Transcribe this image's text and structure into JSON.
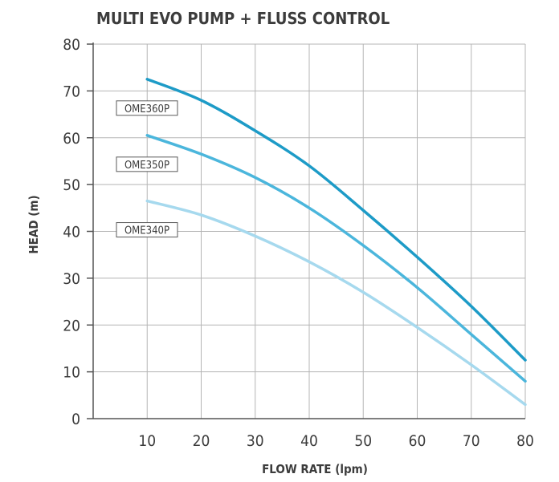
{
  "chart_data": {
    "type": "line",
    "title": "MULTI EVO PUMP + FLUSS CONTROL",
    "xlabel": "FLOW RATE (lpm)",
    "ylabel": "HEAD (m)",
    "xlim": [
      0,
      80
    ],
    "ylim": [
      0,
      80
    ],
    "x_ticks": [
      "10",
      "20",
      "30",
      "40",
      "50",
      "60",
      "70",
      "80"
    ],
    "y_ticks": [
      "0",
      "10",
      "20",
      "30",
      "40",
      "50",
      "60",
      "70",
      "80"
    ],
    "grid": true,
    "series": [
      {
        "name": "OME360P",
        "color": "#1d9bc7",
        "x": [
          10,
          20,
          30,
          40,
          50,
          60,
          70,
          80
        ],
        "y": [
          72.5,
          68,
          61.5,
          54,
          44.5,
          34.5,
          24,
          12.5
        ]
      },
      {
        "name": "OME350P",
        "color": "#4bb6dc",
        "x": [
          10,
          20,
          30,
          40,
          50,
          60,
          70,
          80
        ],
        "y": [
          60.5,
          56.5,
          51.5,
          45,
          37,
          28,
          18,
          8
        ]
      },
      {
        "name": "OME340P",
        "color": "#a6d9ee",
        "x": [
          10,
          20,
          30,
          40,
          50,
          60,
          70,
          80
        ],
        "y": [
          46.5,
          43.5,
          39,
          33.5,
          27,
          19.5,
          11.5,
          3
        ]
      }
    ]
  }
}
